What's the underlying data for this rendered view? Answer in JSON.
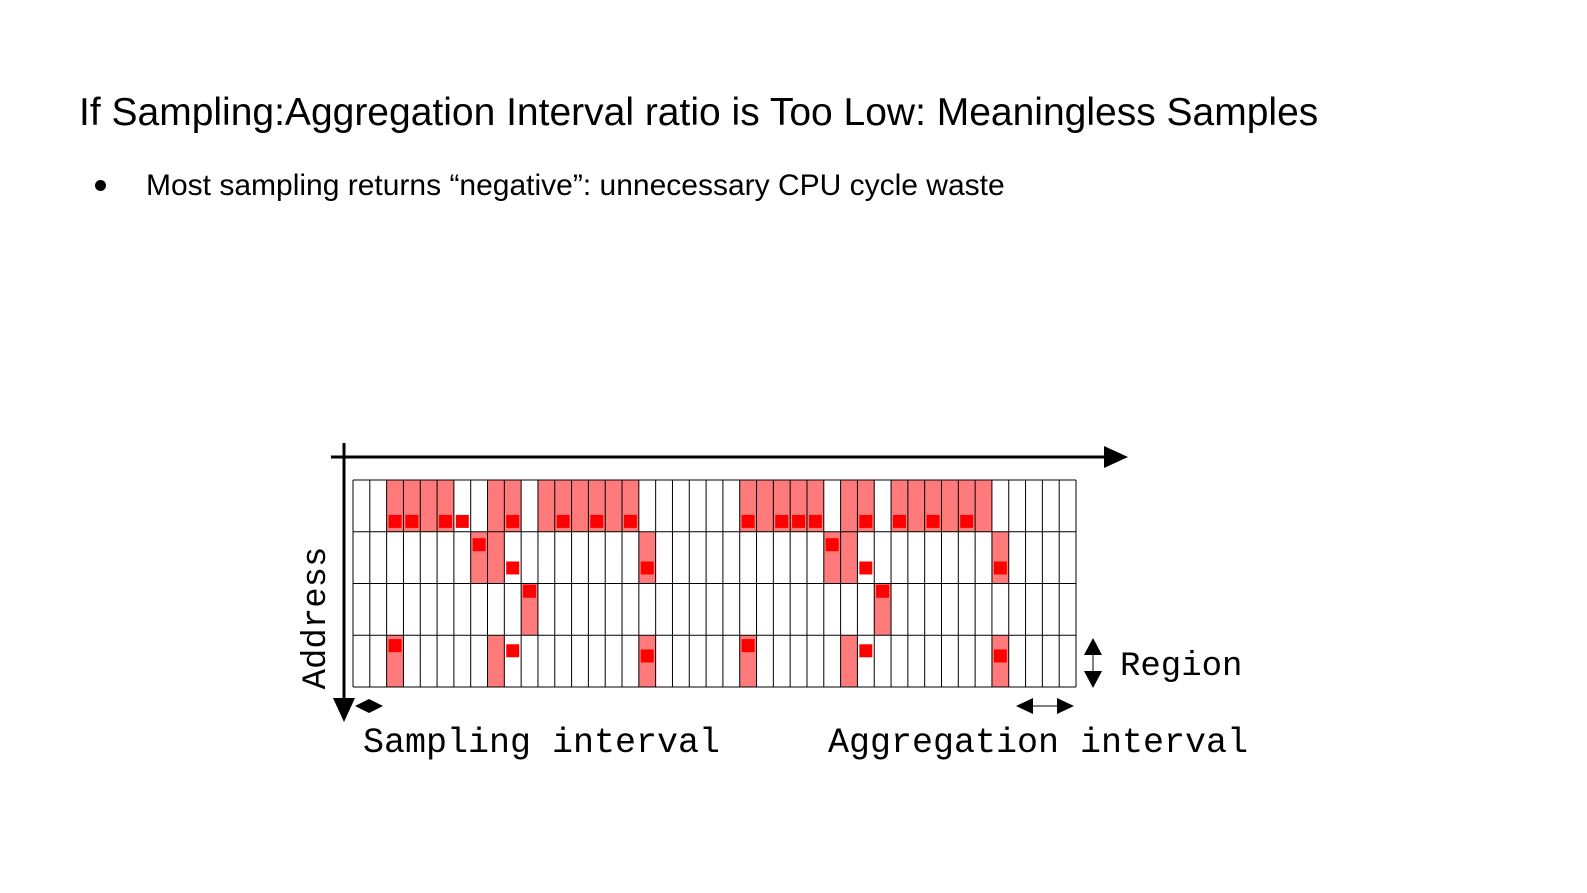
{
  "slide": {
    "title": "If Sampling:Aggregation Interval ratio is Too Low: Meaningless Samples",
    "bullets": [
      "Most sampling returns “negative”: unnecessary CPU cycle waste"
    ]
  },
  "diagram": {
    "y_axis_label": "Address",
    "region_label": "Region",
    "sampling_interval_label": "Sampling interval",
    "aggregation_interval_label": "Aggregation interval",
    "columns": 43,
    "regions": 4,
    "colors": {
      "accessed_fill": "#ff7a7a",
      "sample_dot": "#ff0000",
      "grid_line": "#000000",
      "axis": "#000000"
    },
    "accessed_cells": [
      {
        "region": 0,
        "columns": [
          2,
          3,
          4,
          5,
          8,
          9,
          11,
          12,
          13,
          14,
          15,
          16,
          23,
          24,
          25,
          26,
          27,
          29,
          30,
          32,
          33,
          34,
          35,
          36,
          37
        ]
      },
      {
        "region": 1,
        "columns": [
          7,
          8,
          17,
          28,
          29,
          38
        ]
      },
      {
        "region": 2,
        "columns": [
          10,
          31
        ]
      },
      {
        "region": 3,
        "columns": [
          2,
          8,
          17,
          23,
          29,
          38
        ]
      }
    ],
    "sample_points": [
      {
        "column": 2,
        "region": 0,
        "offset": 0.8
      },
      {
        "column": 3,
        "region": 0,
        "offset": 0.8
      },
      {
        "column": 5,
        "region": 0,
        "offset": 0.8
      },
      {
        "column": 6,
        "region": 0,
        "offset": 0.8
      },
      {
        "column": 9,
        "region": 0,
        "offset": 0.8
      },
      {
        "column": 12,
        "region": 0,
        "offset": 0.8
      },
      {
        "column": 14,
        "region": 0,
        "offset": 0.8
      },
      {
        "column": 16,
        "region": 0,
        "offset": 0.8
      },
      {
        "column": 23,
        "region": 0,
        "offset": 0.8
      },
      {
        "column": 25,
        "region": 0,
        "offset": 0.8
      },
      {
        "column": 26,
        "region": 0,
        "offset": 0.8
      },
      {
        "column": 27,
        "region": 0,
        "offset": 0.8
      },
      {
        "column": 30,
        "region": 0,
        "offset": 0.8
      },
      {
        "column": 32,
        "region": 0,
        "offset": 0.8
      },
      {
        "column": 34,
        "region": 0,
        "offset": 0.8
      },
      {
        "column": 36,
        "region": 0,
        "offset": 0.8
      },
      {
        "column": 7,
        "region": 1,
        "offset": 0.25
      },
      {
        "column": 9,
        "region": 1,
        "offset": 0.7
      },
      {
        "column": 17,
        "region": 1,
        "offset": 0.7
      },
      {
        "column": 28,
        "region": 1,
        "offset": 0.25
      },
      {
        "column": 30,
        "region": 1,
        "offset": 0.7
      },
      {
        "column": 38,
        "region": 1,
        "offset": 0.7
      },
      {
        "column": 10,
        "region": 2,
        "offset": 0.15
      },
      {
        "column": 31,
        "region": 2,
        "offset": 0.15
      },
      {
        "column": 2,
        "region": 3,
        "offset": 0.2
      },
      {
        "column": 9,
        "region": 3,
        "offset": 0.3
      },
      {
        "column": 17,
        "region": 3,
        "offset": 0.4
      },
      {
        "column": 23,
        "region": 3,
        "offset": 0.2
      },
      {
        "column": 30,
        "region": 3,
        "offset": 0.3
      },
      {
        "column": 38,
        "region": 3,
        "offset": 0.4
      }
    ]
  }
}
